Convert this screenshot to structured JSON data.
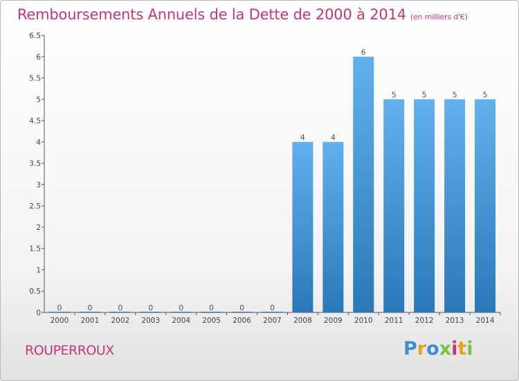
{
  "header": {
    "title": "Remboursements Annuels de la Dette de 2000 à 2014",
    "unit": "(en milliers d'€)"
  },
  "footer": {
    "commune": "ROUPERROUX"
  },
  "logo": {
    "text": "Proxiti",
    "letter_colors": [
      "#3b8fd6",
      "#e8a21a",
      "#3b8fd6",
      "#7ac043",
      "#c6357a",
      "#e8a21a",
      "#7ac043"
    ]
  },
  "colors": {
    "title": "#c6357a",
    "bar_top": "#62b1ec",
    "bar_bottom": "#2a78b8"
  },
  "chart_data": {
    "type": "bar",
    "categories": [
      "2000",
      "2001",
      "2002",
      "2003",
      "2004",
      "2005",
      "2006",
      "2007",
      "2008",
      "2009",
      "2010",
      "2011",
      "2012",
      "2013",
      "2014"
    ],
    "values": [
      0,
      0,
      0,
      0,
      0,
      0,
      0,
      0,
      4,
      4,
      6,
      5,
      5,
      5,
      5
    ],
    "data_labels": [
      "0",
      "0",
      "0",
      "0",
      "0",
      "0",
      "0",
      "0",
      "4",
      "4",
      "6",
      "5",
      "5",
      "5",
      "5"
    ],
    "yticks": [
      "0",
      "0.5",
      "1",
      "1.5",
      "2",
      "2.5",
      "3",
      "3.5",
      "4",
      "4.5",
      "5",
      "5.5",
      "6",
      "6.5"
    ],
    "ytick_values": [
      0,
      0.5,
      1,
      1.5,
      2,
      2.5,
      3,
      3.5,
      4,
      4.5,
      5,
      5.5,
      6,
      6.5
    ],
    "ylim": [
      0,
      6.5
    ],
    "grid": false,
    "legend": "none"
  }
}
